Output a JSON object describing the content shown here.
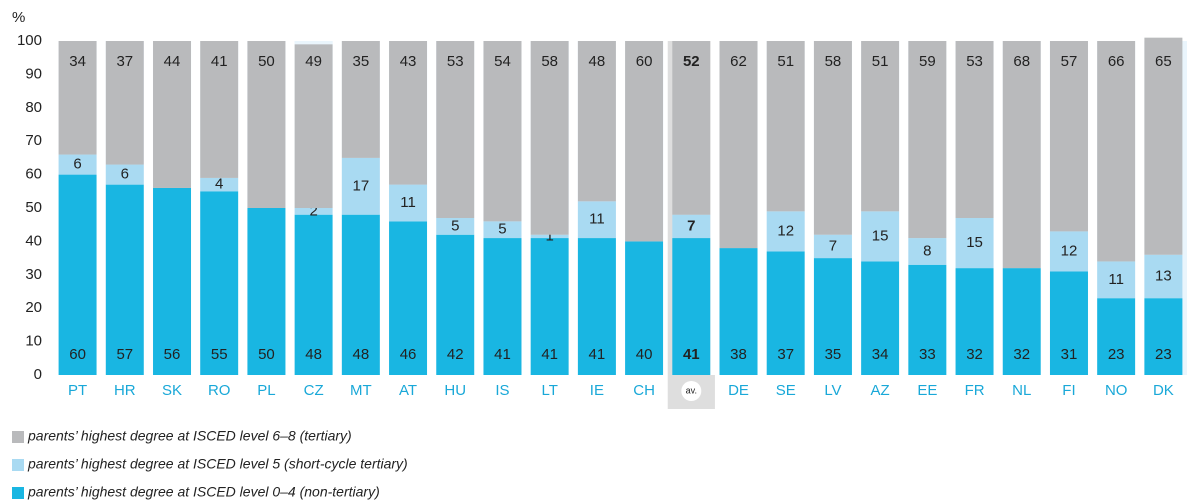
{
  "chart_data": {
    "type": "stacked_bar",
    "y_label": "%",
    "categories": [
      "PT",
      "HR",
      "SK",
      "RO",
      "PL",
      "CZ",
      "MT",
      "AT",
      "HU",
      "IS",
      "LT",
      "IE",
      "CH",
      "av.",
      "DE",
      "SE",
      "LV",
      "AZ",
      "EE",
      "FR",
      "NL",
      "FI",
      "NO",
      "DK"
    ],
    "highlight": "av.",
    "series": [
      {
        "name": "parents’ highest degree at ISCED level 0–4 (non-tertiary)",
        "color": "#19b6e2",
        "values": [
          60,
          57,
          56,
          55,
          50,
          48,
          48,
          46,
          42,
          41,
          41,
          41,
          40,
          41,
          38,
          37,
          35,
          34,
          33,
          32,
          32,
          31,
          23,
          23
        ]
      },
      {
        "name": "parents’ highest degree at ISCED level 5 (short-cycle tertiary)",
        "color": "#a9daf2",
        "values": [
          6,
          6,
          null,
          4,
          null,
          2,
          17,
          11,
          5,
          5,
          1,
          11,
          null,
          7,
          null,
          12,
          7,
          15,
          8,
          15,
          null,
          12,
          11,
          13
        ]
      },
      {
        "name": "parents’ highest degree at ISCED level 6–8 (tertiary)",
        "color": "#b9babc",
        "values": [
          34,
          37,
          44,
          41,
          50,
          49,
          35,
          43,
          53,
          54,
          58,
          48,
          60,
          52,
          62,
          51,
          58,
          51,
          59,
          53,
          68,
          57,
          66,
          65
        ]
      }
    ],
    "ylim": [
      0,
      100
    ],
    "yticks": [
      0,
      10,
      20,
      30,
      40,
      50,
      60,
      70,
      80,
      90,
      100
    ]
  }
}
